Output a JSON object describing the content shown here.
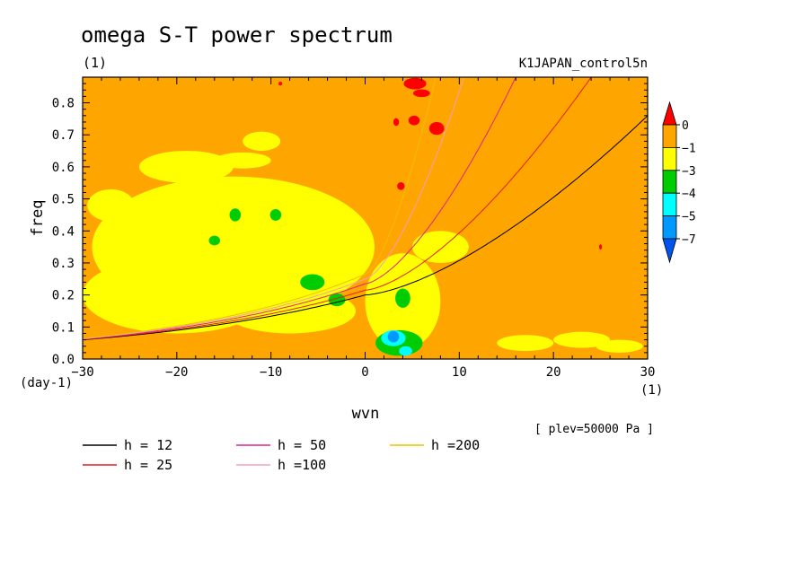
{
  "chart_data": {
    "type": "heatmap",
    "title": "omega S-T power spectrum",
    "units": "(1)",
    "run_label": "K1JAPAN_control5n",
    "xlabel": "wvn",
    "ylabel": "freq",
    "x_units": "(1)",
    "y_units": "(day-1)",
    "xlim": [
      -30,
      30
    ],
    "ylim": [
      0.0,
      0.88
    ],
    "x_ticks": [
      -30,
      -20,
      -10,
      0,
      10,
      20,
      30
    ],
    "x_tick_labels": [
      "−30",
      "−20",
      "−10",
      "0",
      "10",
      "20",
      "30"
    ],
    "y_ticks": [
      0.0,
      0.1,
      0.2,
      0.3,
      0.4,
      0.5,
      0.6,
      0.7,
      0.8
    ],
    "y_tick_labels": [
      "0.0",
      "0.1",
      "0.2",
      "0.3",
      "0.4",
      "0.5",
      "0.6",
      "0.7",
      "0.8"
    ],
    "background_level_color": "#ffa500",
    "colorbar": {
      "levels": [
        "0",
        "−1",
        "−3",
        "−4",
        "−5",
        "−7"
      ],
      "colors": [
        "#ff0000",
        "#ffa500",
        "#ffff00",
        "#00cc00",
        "#00ffff",
        "#0099ff",
        "#0055ee"
      ]
    },
    "note": "[ plev=50000 Pa ]",
    "dispersion_curves": [
      {
        "name": "h = 12",
        "h": 12,
        "color": "#000000"
      },
      {
        "name": "h = 25",
        "h": 25,
        "color": "#e02020"
      },
      {
        "name": "h = 50",
        "h": 50,
        "color": "#e02090"
      },
      {
        "name": "h =100",
        "h": 100,
        "color": "#f0a0c0"
      },
      {
        "name": "h =200",
        "h": 200,
        "color": "#f0c000"
      }
    ],
    "curve_model": {
      "f0": [
        0.06,
        0.061,
        0.062,
        0.063,
        0.064
      ],
      "f_at_0": [
        0.2,
        0.215,
        0.235,
        0.25,
        0.265
      ],
      "f_at_pos": [
        0.76,
        0.88,
        0.88,
        0.88,
        0.88
      ],
      "pos_wvn": [
        30,
        24,
        16,
        10.5,
        7.5
      ]
    },
    "regions": [
      {
        "level": "-3",
        "cx": -14,
        "cy": 0.35,
        "rx": 15,
        "ry": 0.22
      },
      {
        "level": "-3",
        "cx": -20,
        "cy": 0.2,
        "rx": 10,
        "ry": 0.12
      },
      {
        "level": "-3",
        "cx": -8,
        "cy": 0.15,
        "rx": 7,
        "ry": 0.07
      },
      {
        "level": "-3",
        "cx": -19,
        "cy": 0.6,
        "rx": 5,
        "ry": 0.05
      },
      {
        "level": "-3",
        "cx": 4,
        "cy": 0.18,
        "rx": 4,
        "ry": 0.15
      },
      {
        "level": "-3",
        "cx": 8,
        "cy": 0.35,
        "rx": 3,
        "ry": 0.05
      },
      {
        "level": "-3",
        "cx": 17,
        "cy": 0.05,
        "rx": 3,
        "ry": 0.025
      },
      {
        "level": "-3",
        "cx": 23,
        "cy": 0.06,
        "rx": 3,
        "ry": 0.025
      },
      {
        "level": "-3",
        "cx": 27,
        "cy": 0.04,
        "rx": 2.5,
        "ry": 0.02
      },
      {
        "level": "-3",
        "cx": -27,
        "cy": 0.48,
        "rx": 2.5,
        "ry": 0.05
      },
      {
        "level": "-3",
        "cx": -11,
        "cy": 0.68,
        "rx": 2,
        "ry": 0.03
      },
      {
        "level": "-3",
        "cx": -13,
        "cy": 0.62,
        "rx": 3,
        "ry": 0.025
      },
      {
        "level": "-4",
        "cx": -5.6,
        "cy": 0.24,
        "rx": 1.3,
        "ry": 0.025
      },
      {
        "level": "-4",
        "cx": -3,
        "cy": 0.185,
        "rx": 0.9,
        "ry": 0.02
      },
      {
        "level": "-4",
        "cx": -13.8,
        "cy": 0.45,
        "rx": 0.6,
        "ry": 0.02
      },
      {
        "level": "-4",
        "cx": -9.5,
        "cy": 0.45,
        "rx": 0.6,
        "ry": 0.018
      },
      {
        "level": "-4",
        "cx": -16,
        "cy": 0.37,
        "rx": 0.6,
        "ry": 0.015
      },
      {
        "level": "-4",
        "cx": 3.6,
        "cy": 0.05,
        "rx": 2.5,
        "ry": 0.04
      },
      {
        "level": "-4",
        "cx": 4,
        "cy": 0.19,
        "rx": 0.8,
        "ry": 0.03
      },
      {
        "level": "-5",
        "cx": 3,
        "cy": 0.065,
        "rx": 1.3,
        "ry": 0.025
      },
      {
        "level": "-5",
        "cx": 4.3,
        "cy": 0.025,
        "rx": 0.7,
        "ry": 0.015
      },
      {
        "level": "-7",
        "cx": 3,
        "cy": 0.07,
        "rx": 0.6,
        "ry": 0.018
      },
      {
        "level": "0",
        "cx": 5.3,
        "cy": 0.86,
        "rx": 1.2,
        "ry": 0.018
      },
      {
        "level": "0",
        "cx": 6,
        "cy": 0.83,
        "rx": 0.9,
        "ry": 0.012
      },
      {
        "level": "0",
        "cx": 5.2,
        "cy": 0.745,
        "rx": 0.6,
        "ry": 0.015
      },
      {
        "level": "0",
        "cx": 7.6,
        "cy": 0.72,
        "rx": 0.8,
        "ry": 0.02
      },
      {
        "level": "0",
        "cx": 3.3,
        "cy": 0.74,
        "rx": 0.3,
        "ry": 0.012
      },
      {
        "level": "0",
        "cx": 3.8,
        "cy": 0.54,
        "rx": 0.4,
        "ry": 0.012
      },
      {
        "level": "0",
        "cx": 25,
        "cy": 0.35,
        "rx": 0.15,
        "ry": 0.008
      },
      {
        "level": "0",
        "cx": -9,
        "cy": 0.86,
        "rx": 0.2,
        "ry": 0.006
      }
    ]
  }
}
